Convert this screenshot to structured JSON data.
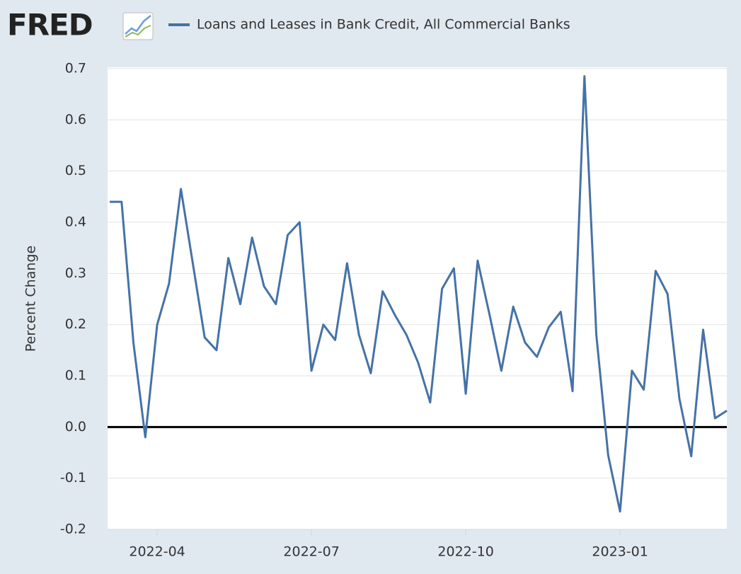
{
  "logo": "FRED",
  "chart_data": {
    "type": "line",
    "y_label": "Percent Change",
    "categories": [
      null,
      null,
      null,
      null,
      "2022-04",
      null,
      null,
      null,
      null,
      null,
      null,
      null,
      null,
      null,
      null,
      null,
      null,
      "2022-07",
      null,
      null,
      null,
      null,
      null,
      null,
      null,
      null,
      null,
      null,
      null,
      null,
      "2022-10",
      null,
      null,
      null,
      null,
      null,
      null,
      null,
      null,
      null,
      null,
      null,
      null,
      "2023-01",
      null,
      null,
      null,
      null,
      null,
      null,
      null,
      null,
      null
    ],
    "series": [
      {
        "name": "Loans and Leases in Bank Credit, All Commercial Banks",
        "color": "#4572a7",
        "values": [
          0.44,
          0.44,
          0.165,
          -0.02,
          0.2,
          0.28,
          0.465,
          0.32,
          0.175,
          0.15,
          0.33,
          0.24,
          0.37,
          0.275,
          0.24,
          0.375,
          0.4,
          0.11,
          0.2,
          0.17,
          0.32,
          0.18,
          0.105,
          0.265,
          0.22,
          0.18,
          0.125,
          0.048,
          0.27,
          0.31,
          0.065,
          0.325,
          0.22,
          0.11,
          0.235,
          0.165,
          0.137,
          0.195,
          0.225,
          0.07,
          0.685,
          0.18,
          -0.055,
          -0.165,
          0.11,
          0.073,
          0.305,
          0.26,
          0.055,
          -0.057,
          0.19,
          0.017,
          0.032
        ]
      }
    ],
    "ylim": [
      -0.2,
      0.7
    ],
    "yticks": [
      -0.2,
      -0.1,
      {
        "value": 0,
        "label": "0.0"
      },
      0.1,
      0.2,
      0.3,
      0.4,
      0.5,
      0.6,
      0.7
    ],
    "grid": true
  }
}
